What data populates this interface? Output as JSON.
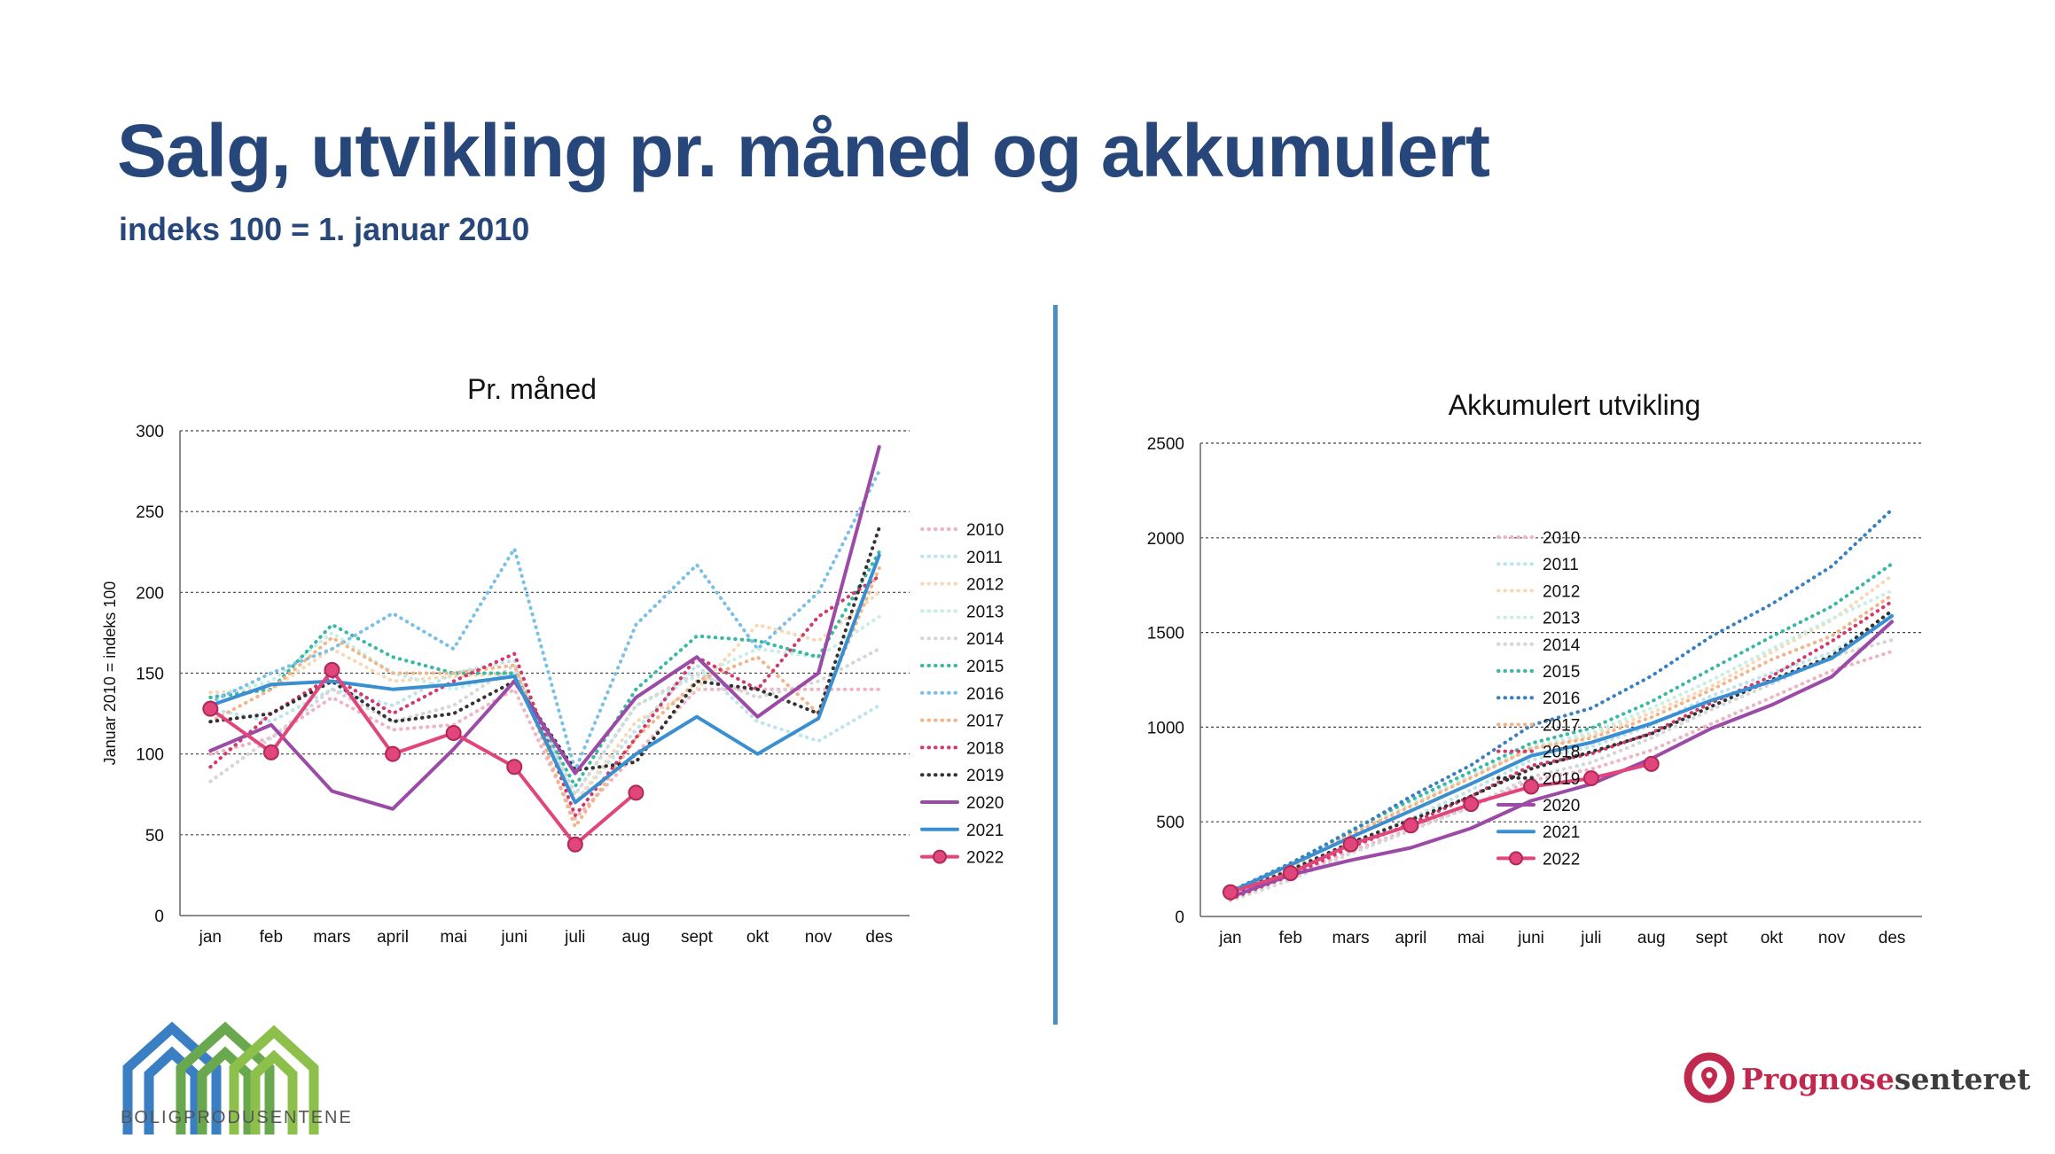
{
  "header": {
    "title": "Salg, utvikling pr. måned og akkumulert",
    "subtitle": "indeks 100 = 1. januar 2010"
  },
  "logos": {
    "left_text": "BOLIGPRODUSENTENE",
    "right_text_a": "Prognose",
    "right_text_b": "senteret"
  },
  "colors": {
    "title": "#27477b",
    "divider": "#4a8fc4",
    "accent_pink": "#e0457b",
    "accent_blue": "#3a8fd1",
    "accent_purple": "#9b4aa6"
  },
  "chart_data": [
    {
      "type": "line",
      "title": "Pr. måned",
      "ylabel": "Januar 2010 = indeks 100",
      "xlabel": "",
      "ylim": [
        0,
        300
      ],
      "yticks": [
        0,
        50,
        100,
        150,
        200,
        250,
        300
      ],
      "grid": true,
      "legend_position": "right",
      "categories": [
        "jan",
        "feb",
        "mars",
        "april",
        "mai",
        "juni",
        "juli",
        "aug",
        "sept",
        "okt",
        "nov",
        "des"
      ],
      "series": [
        {
          "name": "2010",
          "color": "#f0b3c3",
          "style": "dotted",
          "values": [
            100,
            110,
            135,
            115,
            118,
            140,
            60,
            100,
            140,
            140,
            140,
            140
          ]
        },
        {
          "name": "2011",
          "color": "#bde3ee",
          "style": "dotted",
          "values": [
            128,
            120,
            140,
            130,
            150,
            158,
            70,
            115,
            155,
            120,
            108,
            130
          ]
        },
        {
          "name": "2012",
          "color": "#f7d9b8",
          "style": "dotted",
          "values": [
            138,
            140,
            165,
            145,
            148,
            150,
            70,
            120,
            140,
            180,
            170,
            200
          ]
        },
        {
          "name": "2013",
          "color": "#c9eee6",
          "style": "dotted",
          "values": [
            135,
            145,
            175,
            150,
            140,
            150,
            75,
            130,
            148,
            165,
            160,
            185
          ]
        },
        {
          "name": "2014",
          "color": "#d6d6d6",
          "style": "dotted",
          "values": [
            83,
            110,
            140,
            120,
            130,
            155,
            75,
            130,
            150,
            135,
            145,
            165
          ]
        },
        {
          "name": "2015",
          "color": "#3bb8a4",
          "style": "dotted",
          "values": [
            135,
            140,
            180,
            160,
            150,
            150,
            80,
            140,
            173,
            170,
            160,
            225
          ]
        },
        {
          "name": "2016",
          "color": "#79c0e6",
          "style": "dotted",
          "values": [
            132,
            150,
            165,
            187,
            165,
            227,
            90,
            180,
            217,
            165,
            200,
            275
          ]
        },
        {
          "name": "2017",
          "color": "#f0b68a",
          "style": "dotted",
          "values": [
            120,
            140,
            172,
            150,
            150,
            155,
            55,
            110,
            145,
            160,
            125,
            215
          ]
        },
        {
          "name": "2018",
          "color": "#d13a6b",
          "style": "dotted",
          "values": [
            92,
            125,
            148,
            125,
            145,
            162,
            62,
            110,
            160,
            140,
            185,
            210
          ]
        },
        {
          "name": "2019",
          "color": "#333333",
          "style": "dotted",
          "values": [
            120,
            125,
            145,
            120,
            125,
            145,
            90,
            95,
            145,
            140,
            125,
            240
          ]
        },
        {
          "name": "2020",
          "color": "#9b4aa6",
          "style": "solid",
          "values": [
            102,
            118,
            77,
            66,
            103,
            145,
            88,
            135,
            160,
            123,
            150,
            290
          ]
        },
        {
          "name": "2021",
          "color": "#3a8fd1",
          "style": "solid",
          "values": [
            130,
            143,
            145,
            140,
            143,
            148,
            70,
            100,
            123,
            100,
            122,
            223
          ]
        },
        {
          "name": "2022",
          "color": "#e0457b",
          "style": "solid-marker",
          "values": [
            128,
            101,
            152,
            100,
            113,
            92,
            44,
            76,
            null,
            null,
            null,
            null
          ]
        }
      ]
    },
    {
      "type": "line",
      "title": "Akkumulert utvikling",
      "ylabel": "",
      "xlabel": "",
      "ylim": [
        0,
        2500
      ],
      "yticks": [
        0,
        500,
        1000,
        1500,
        2000,
        2500
      ],
      "grid": true,
      "legend_position": "right",
      "categories": [
        "jan",
        "feb",
        "mars",
        "april",
        "mai",
        "juni",
        "juli",
        "aug",
        "sept",
        "okt",
        "nov",
        "des"
      ],
      "series": [
        {
          "name": "2010",
          "color": "#f0b3c3",
          "style": "dotted",
          "values": [
            100,
            210,
            345,
            460,
            578,
            718,
            778,
            878,
            1018,
            1158,
            1298,
            1400
          ]
        },
        {
          "name": "2011",
          "color": "#bde3ee",
          "style": "dotted",
          "values": [
            128,
            248,
            388,
            518,
            668,
            826,
            896,
            1011,
            1166,
            1286,
            1394,
            1600
          ]
        },
        {
          "name": "2012",
          "color": "#f7d9b8",
          "style": "dotted",
          "values": [
            138,
            278,
            443,
            588,
            736,
            886,
            956,
            1076,
            1216,
            1396,
            1566,
            1800
          ]
        },
        {
          "name": "2013",
          "color": "#c9eee6",
          "style": "dotted",
          "values": [
            135,
            280,
            455,
            605,
            745,
            895,
            970,
            1100,
            1248,
            1413,
            1573,
            1720
          ]
        },
        {
          "name": "2014",
          "color": "#d6d6d6",
          "style": "dotted",
          "values": [
            83,
            193,
            333,
            453,
            583,
            738,
            813,
            943,
            1093,
            1228,
            1373,
            1460
          ]
        },
        {
          "name": "2015",
          "color": "#3bb8a4",
          "style": "dotted",
          "values": [
            135,
            275,
            455,
            615,
            765,
            915,
            995,
            1135,
            1308,
            1478,
            1638,
            1863
          ]
        },
        {
          "name": "2016",
          "color": "#3a7fbf",
          "style": "dotted",
          "values": [
            132,
            282,
            447,
            634,
            799,
            1010,
            1100,
            1270,
            1480,
            1650,
            1850,
            2150
          ]
        },
        {
          "name": "2017",
          "color": "#f0b68a",
          "style": "dotted",
          "values": [
            120,
            260,
            432,
            582,
            732,
            887,
            942,
            1052,
            1197,
            1357,
            1482,
            1697
          ]
        },
        {
          "name": "2018",
          "color": "#d13a6b",
          "style": "dotted",
          "values": [
            92,
            217,
            365,
            490,
            635,
            797,
            859,
            969,
            1129,
            1269,
            1454,
            1664
          ]
        },
        {
          "name": "2019",
          "color": "#333333",
          "style": "dotted",
          "values": [
            120,
            245,
            390,
            510,
            635,
            780,
            870,
            965,
            1110,
            1250,
            1375,
            1615
          ]
        },
        {
          "name": "2020",
          "color": "#9b4aa6",
          "style": "solid",
          "values": [
            102,
            220,
            297,
            363,
            466,
            611,
            699,
            834,
            994,
            1117,
            1267,
            1557
          ]
        },
        {
          "name": "2021",
          "color": "#3a8fd1",
          "style": "solid",
          "values": [
            130,
            273,
            418,
            558,
            701,
            849,
            919,
            1019,
            1142,
            1242,
            1364,
            1587
          ]
        },
        {
          "name": "2022",
          "color": "#e0457b",
          "style": "solid-marker",
          "values": [
            128,
            229,
            381,
            481,
            594,
            686,
            730,
            806,
            null,
            null,
            null,
            null
          ]
        }
      ]
    }
  ]
}
